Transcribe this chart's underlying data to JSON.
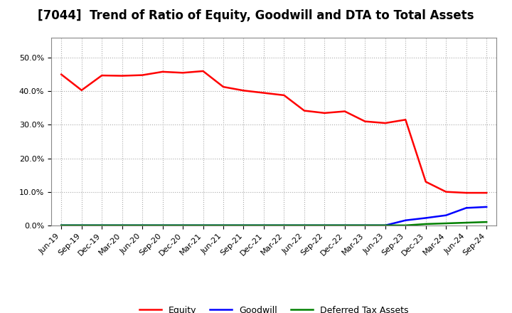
{
  "title": "[7044]  Trend of Ratio of Equity, Goodwill and DTA to Total Assets",
  "title_fontsize": 12,
  "background_color": "#ffffff",
  "plot_bg_color": "#ffffff",
  "grid_color": "#aaaaaa",
  "xlabels": [
    "Jun-19",
    "Sep-19",
    "Dec-19",
    "Mar-20",
    "Jun-20",
    "Sep-20",
    "Dec-20",
    "Mar-21",
    "Jun-21",
    "Sep-21",
    "Dec-21",
    "Mar-22",
    "Jun-22",
    "Sep-22",
    "Dec-22",
    "Mar-23",
    "Jun-23",
    "Sep-23",
    "Dec-23",
    "Mar-24",
    "Jun-24",
    "Sep-24"
  ],
  "equity": [
    0.45,
    0.403,
    0.447,
    0.446,
    0.448,
    0.458,
    0.455,
    0.46,
    0.413,
    0.402,
    0.395,
    0.388,
    0.342,
    0.335,
    0.34,
    0.31,
    0.305,
    0.315,
    0.13,
    0.1,
    0.097,
    0.097
  ],
  "goodwill": [
    0.0,
    0.0,
    0.0,
    0.0,
    0.0,
    0.0,
    0.0,
    0.0,
    0.0,
    0.0,
    0.0,
    0.0,
    0.0,
    0.0,
    0.0,
    0.0,
    0.0,
    0.015,
    0.022,
    0.03,
    0.052,
    0.055
  ],
  "dta": [
    0.0,
    0.0,
    0.0,
    0.0,
    0.0,
    0.0,
    0.0,
    0.0,
    0.0,
    0.0,
    0.0,
    0.0,
    0.0,
    0.0,
    0.0,
    0.0,
    0.0,
    0.0,
    0.004,
    0.006,
    0.008,
    0.01
  ],
  "equity_color": "#ff0000",
  "goodwill_color": "#0000ff",
  "dta_color": "#008000",
  "ylim": [
    0.0,
    0.56
  ],
  "yticks": [
    0.0,
    0.1,
    0.2,
    0.3,
    0.4,
    0.5
  ],
  "ytick_labels": [
    "0.0%",
    "10.0%",
    "20.0%",
    "30.0%",
    "40.0%",
    "50.0%"
  ],
  "legend_labels": [
    "Equity",
    "Goodwill",
    "Deferred Tax Assets"
  ],
  "line_width": 1.8
}
